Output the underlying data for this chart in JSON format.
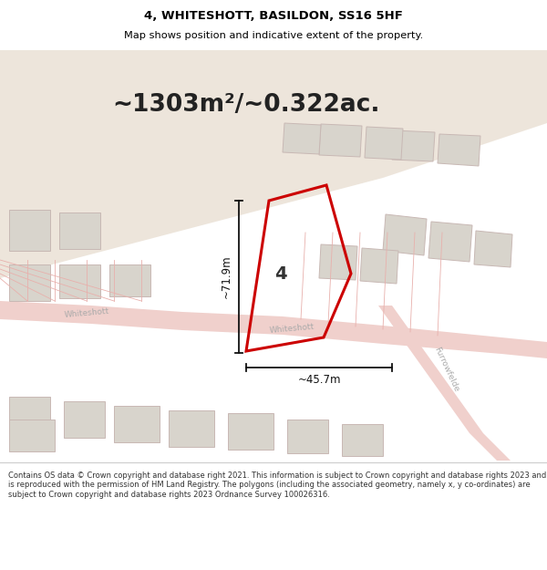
{
  "title_line1": "4, WHITESHOTT, BASILDON, SS16 5HF",
  "title_line2": "Map shows position and indicative extent of the property.",
  "area_text": "~1303m²/~0.322ac.",
  "dim_width": "~45.7m",
  "dim_height": "~71.9m",
  "plot_number": "4",
  "footer_text": "Contains OS data © Crown copyright and database right 2021. This information is subject to Crown copyright and database rights 2023 and is reproduced with the permission of HM Land Registry. The polygons (including the associated geometry, namely x, y co-ordinates) are subject to Crown copyright and database rights 2023 Ordnance Survey 100026316.",
  "map_bg": "#f0ebe4",
  "header_bg": "#ffffff",
  "footer_bg": "#ffffff",
  "road_color": "#f0d0cc",
  "road_edge": "#e8b8b4",
  "building_color": "#d8d4cc",
  "building_edge": "#c8b8b4",
  "plot_fill": "#f8f4f0",
  "highlight_color": "#cc0000",
  "tan_area": "#ede5db",
  "road_label_color": "#aaaaaa",
  "dim_line_color": "#111111",
  "area_text_color": "#222222"
}
